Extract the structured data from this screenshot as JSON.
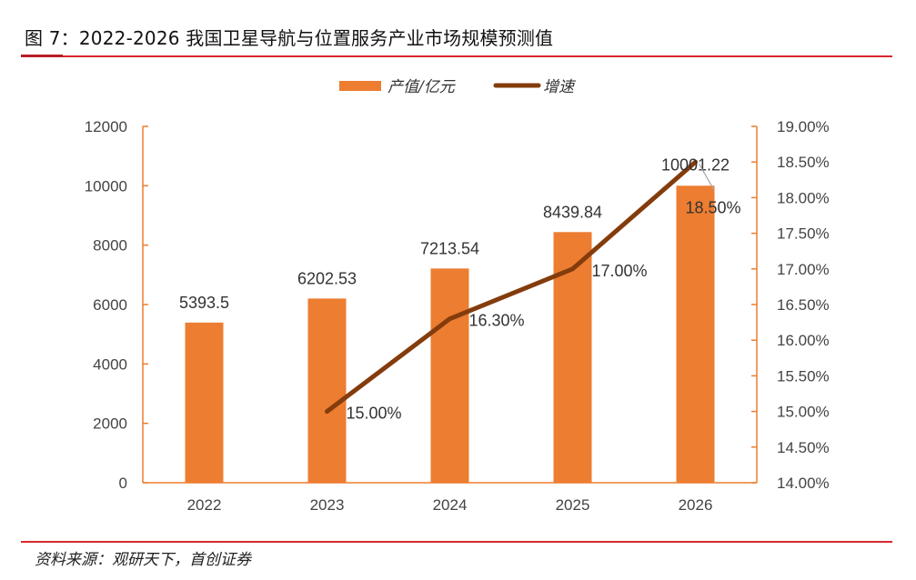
{
  "header": {
    "title": "图 7：2022-2026 我国卫星导航与位置服务产业市场规模预测值"
  },
  "footer": {
    "source": "资料来源：观研天下，首创证券"
  },
  "colors": {
    "bar": "#ED7D31",
    "line": "#843C0C",
    "axis": "#ED7D31",
    "rule": "#D9272E",
    "text": "#444444"
  },
  "chart_data": {
    "type": "bar+line",
    "title": "2022-2026 我国卫星导航与位置服务产业市场规模预测值",
    "categories": [
      "2022",
      "2023",
      "2024",
      "2025",
      "2026"
    ],
    "series": [
      {
        "name": "产值/亿元",
        "type": "bar",
        "axis": "left",
        "values": [
          5393.5,
          6202.53,
          7213.54,
          8439.84,
          10001.22
        ],
        "labels": [
          "5393.5",
          "6202.53",
          "7213.54",
          "8439.84",
          "10001.22"
        ]
      },
      {
        "name": "增速",
        "type": "line",
        "axis": "right",
        "values": [
          null,
          15.0,
          16.3,
          17.0,
          18.5
        ],
        "labels": [
          "",
          "15.00%",
          "16.30%",
          "17.00%",
          "18.50%"
        ]
      }
    ],
    "y_left": {
      "range": [
        0,
        12000
      ],
      "ticks": [
        0,
        2000,
        4000,
        6000,
        8000,
        10000,
        12000
      ],
      "tick_labels": [
        "0",
        "2000",
        "4000",
        "6000",
        "8000",
        "10000",
        "12000"
      ]
    },
    "y_right": {
      "range": [
        14.0,
        19.0
      ],
      "ticks": [
        14.0,
        14.5,
        15.0,
        15.5,
        16.0,
        16.5,
        17.0,
        17.5,
        18.0,
        18.5,
        19.0
      ],
      "tick_labels": [
        "14.00%",
        "14.50%",
        "15.00%",
        "15.50%",
        "16.00%",
        "16.50%",
        "17.00%",
        "17.50%",
        "18.00%",
        "18.50%",
        "19.00%"
      ]
    },
    "xlabel": "",
    "ylabel": "",
    "grid": false,
    "legend": {
      "position": "top-center",
      "entries": [
        "产值/亿元",
        "增速"
      ]
    }
  }
}
